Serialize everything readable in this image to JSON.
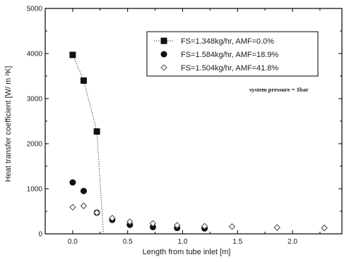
{
  "chart_data": {
    "type": "scatter",
    "xlabel": "Length from tube inlet [m]",
    "ylabel": "Heat transfer coefficient [W/ m  ²K]",
    "xlim": [
      -0.25,
      2.45
    ],
    "ylim": [
      0,
      5000
    ],
    "xticks": [
      "0.0",
      "0.5",
      "1.0",
      "1.5",
      "2.0"
    ],
    "xtick_values": [
      0,
      0.5,
      1.0,
      1.5,
      2.0
    ],
    "yticks": [
      "0",
      "1000",
      "2000",
      "3000",
      "4000",
      "5000"
    ],
    "ytick_values": [
      0,
      1000,
      2000,
      3000,
      4000,
      5000
    ],
    "grid": false,
    "legend_position": "top-right",
    "annotation": "system pressure = 1bar",
    "series": [
      {
        "name": "FS=1.348kg/hr, AMF=0.0%",
        "marker": "square",
        "line": "dotted",
        "x": [
          0.0,
          0.1,
          0.22
        ],
        "y": [
          3970,
          3400,
          2270
        ],
        "line_tail": {
          "x": [
            0.22,
            0.28
          ],
          "y": [
            2270,
            0
          ]
        }
      },
      {
        "name": "FS=1.584kg/hr, AMF=18.9%",
        "marker": "circle",
        "line": "none",
        "x": [
          0.0,
          0.1,
          0.22,
          0.36,
          0.52,
          0.73,
          0.95,
          1.2
        ],
        "y": [
          1140,
          950,
          470,
          310,
          200,
          150,
          130,
          120
        ]
      },
      {
        "name": "FS=1.504kg/hr, AMF=41.8%",
        "marker": "diamond",
        "line": "none",
        "x": [
          0.0,
          0.1,
          0.22,
          0.36,
          0.52,
          0.73,
          0.95,
          1.2,
          1.45,
          1.86,
          2.29
        ],
        "y": [
          590,
          620,
          470,
          350,
          270,
          230,
          190,
          170,
          160,
          140,
          130
        ]
      }
    ]
  }
}
